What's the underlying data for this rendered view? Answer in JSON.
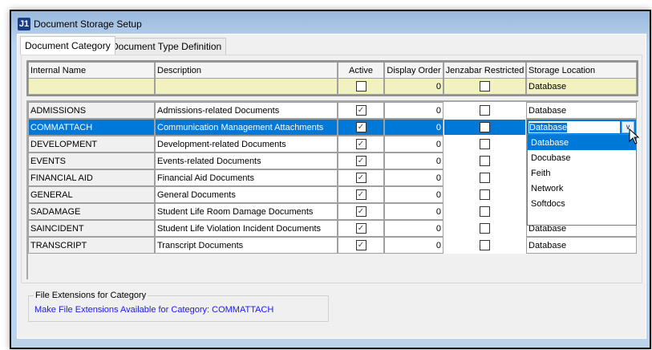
{
  "window": {
    "title": "Document Storage Setup",
    "logo": "J1"
  },
  "tabs": [
    {
      "label": "Document Category",
      "active": true
    },
    {
      "label": "Document Type Definition",
      "active": false
    }
  ],
  "grid": {
    "columns": [
      "Internal Name",
      "Description",
      "Active",
      "Display Order",
      "Jenzabar Restricted",
      "Storage Location"
    ],
    "filter_row": {
      "name": "",
      "description": "",
      "active": false,
      "display_order": "0",
      "restricted": false,
      "storage": "Database"
    },
    "rows": [
      {
        "name": "ADMISSIONS",
        "description": "Admissions-related Documents",
        "active": true,
        "display_order": "0",
        "restricted": false,
        "storage": "Database"
      },
      {
        "name": "COMMATTACH",
        "description": "Communication Management Attachments",
        "active": true,
        "display_order": "0",
        "restricted": false,
        "storage": "Database",
        "selected": true
      },
      {
        "name": "DEVELOPMENT",
        "description": "Development-related Documents",
        "active": true,
        "display_order": "0",
        "restricted": false,
        "storage": ""
      },
      {
        "name": "EVENTS",
        "description": "Events-related Documents",
        "active": true,
        "display_order": "0",
        "restricted": false,
        "storage": ""
      },
      {
        "name": "FINANCIAL AID",
        "description": "Financial Aid Documents",
        "active": true,
        "display_order": "0",
        "restricted": false,
        "storage": ""
      },
      {
        "name": "GENERAL",
        "description": "General Documents",
        "active": true,
        "display_order": "0",
        "restricted": false,
        "storage": ""
      },
      {
        "name": "SADAMAGE",
        "description": "Student Life Room Damage Documents",
        "active": true,
        "display_order": "0",
        "restricted": false,
        "storage": ""
      },
      {
        "name": "SAINCIDENT",
        "description": "Student Life Violation Incident Documents",
        "active": true,
        "display_order": "0",
        "restricted": false,
        "storage": "Database"
      },
      {
        "name": "TRANSCRIPT",
        "description": "Transcript Documents",
        "active": true,
        "display_order": "0",
        "restricted": false,
        "storage": "Database"
      }
    ]
  },
  "dropdown": {
    "options": [
      "Database",
      "Docubase",
      "Feith",
      "Network",
      "Softdocs"
    ],
    "highlighted": "Database"
  },
  "file_extensions": {
    "legend": "File Extensions for Category",
    "link": "Make File Extensions Available for Category: COMMATTACH"
  },
  "colors": {
    "selection": "#0078d7",
    "filter_row": "#f2f2c0",
    "link": "#1a1aee"
  }
}
